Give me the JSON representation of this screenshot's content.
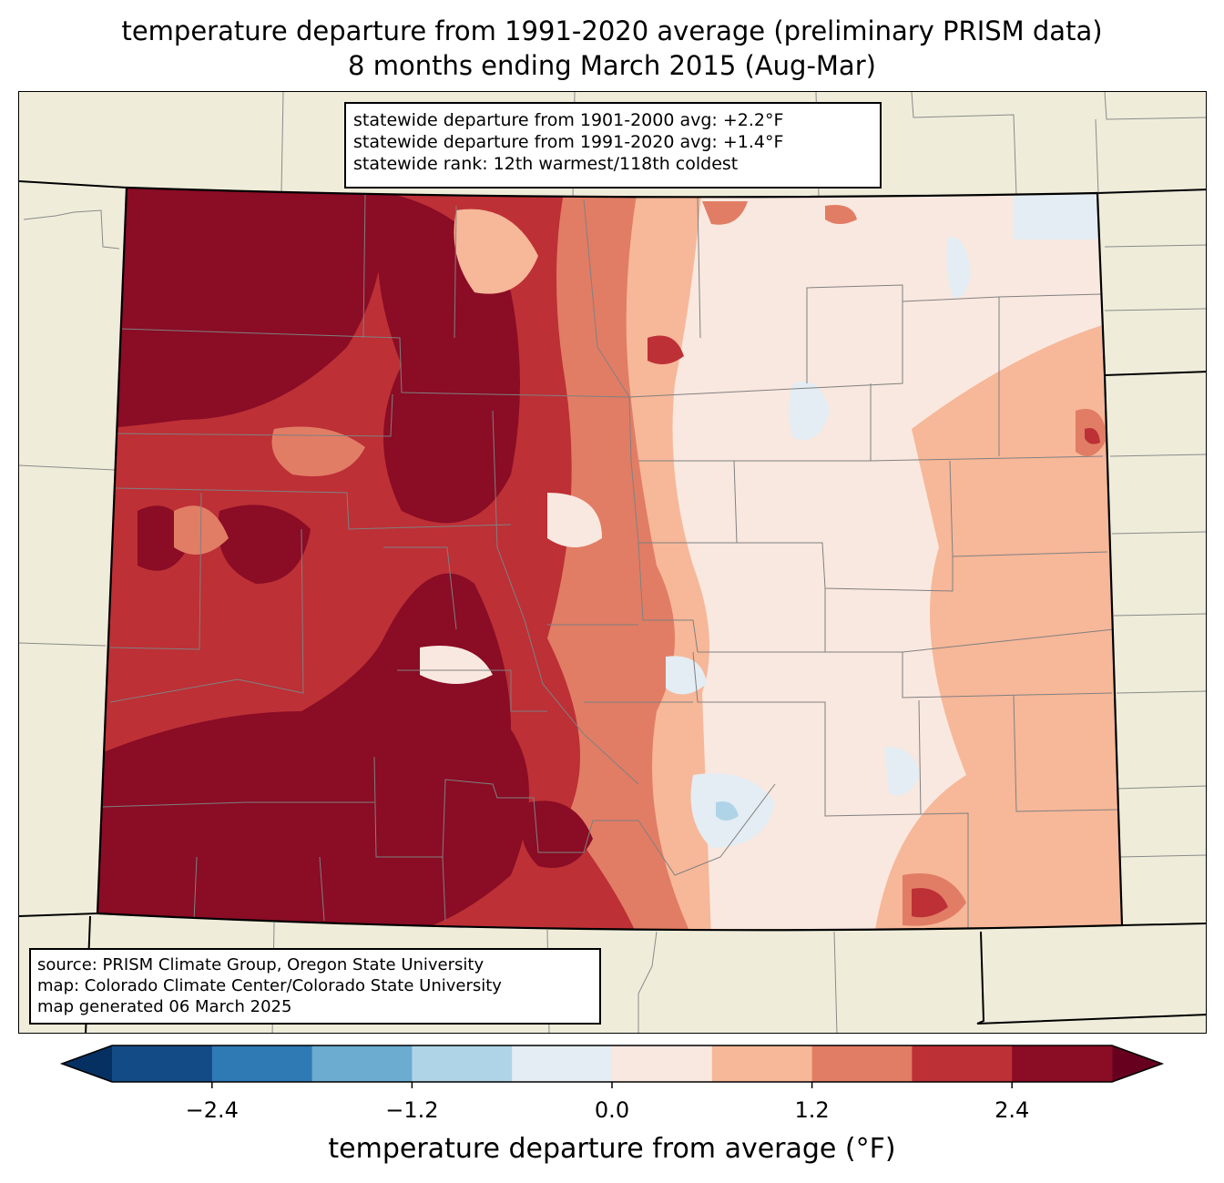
{
  "title": {
    "line1": "temperature departure from 1991-2020 average (preliminary PRISM data)",
    "line2": "8 months ending March 2015 (Aug-Mar)"
  },
  "stats_box": {
    "line1": "statewide departure from 1901-2000 avg: +2.2°F",
    "line2": "statewide departure from 1991-2020 avg: +1.4°F",
    "line3": "statewide rank: 12th warmest/118th coldest"
  },
  "source_box": {
    "line1": "source: PRISM Climate Group, Oregon State University",
    "line2": "map: Colorado Climate Center/Colorado State University",
    "line3": "map generated 06 March 2025"
  },
  "colorbar": {
    "label": "temperature departure from average (°F)",
    "ticks": [
      "−2.4",
      "−1.2",
      "0.0",
      "1.2",
      "2.4"
    ],
    "tick_values": [
      -2.4,
      -1.2,
      0.0,
      1.2,
      2.4
    ],
    "bins": [
      {
        "min": -3.0,
        "max": -2.4,
        "color": "#134b87"
      },
      {
        "min": -2.4,
        "max": -1.8,
        "color": "#2f79b5"
      },
      {
        "min": -1.8,
        "max": -1.2,
        "color": "#6bacd0"
      },
      {
        "min": -1.2,
        "max": -0.6,
        "color": "#b0d4e7"
      },
      {
        "min": -0.6,
        "max": 0.0,
        "color": "#e3edf3"
      },
      {
        "min": 0.0,
        "max": 0.6,
        "color": "#f9e8df"
      },
      {
        "min": 0.6,
        "max": 1.2,
        "color": "#f7b799"
      },
      {
        "min": 1.2,
        "max": 1.8,
        "color": "#e17d65"
      },
      {
        "min": 1.8,
        "max": 2.4,
        "color": "#bd3036"
      },
      {
        "min": 2.4,
        "max": 3.0,
        "color": "#8a0c25"
      }
    ],
    "under_color": "#053061",
    "over_color": "#67001f"
  },
  "colors": {
    "land": "#efedda",
    "state_border": "#000000",
    "county_line": "#808080"
  }
}
